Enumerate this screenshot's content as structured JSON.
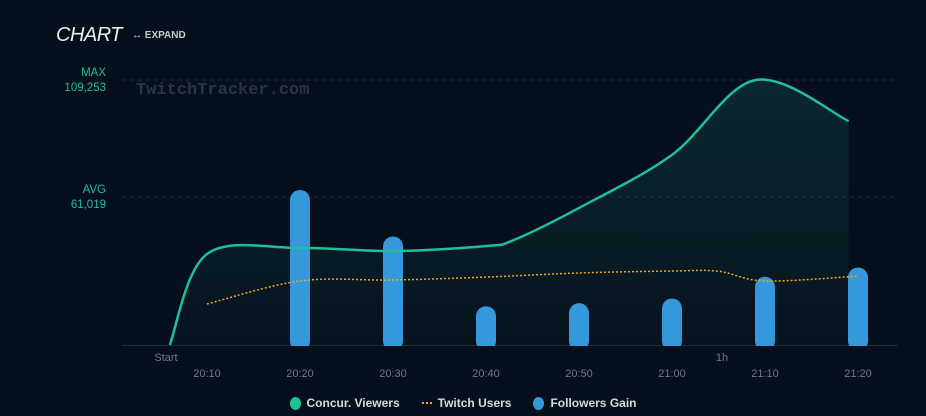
{
  "header": {
    "title": "CHART",
    "expand_label": "EXPAND",
    "expand_icon": "arrows-horizontal-icon"
  },
  "watermark": "TwitchTracker.com",
  "markers": {
    "max_label": "MAX",
    "max_value": "109,253",
    "avg_label": "AVG",
    "avg_value": "61,019"
  },
  "chart_data": {
    "type": "line+bar",
    "x_ticks": [
      "20:10",
      "20:20",
      "20:30",
      "20:40",
      "20:50",
      "21:00",
      "21:10",
      "21:20"
    ],
    "x_extra_labels": [
      "Start",
      "1h"
    ],
    "ylim": [
      0,
      109253
    ],
    "reference_lines": [
      {
        "label": "MAX",
        "value": 109253
      },
      {
        "label": "AVG",
        "value": 61019
      }
    ],
    "grid": false,
    "legend_placement": "bottom",
    "series": [
      {
        "name": "Concur. Viewers",
        "type": "area",
        "color": "#1fbf98",
        "x": [
          "20:06",
          "20:10",
          "20:20",
          "20:30",
          "20:40",
          "20:43",
          "20:50",
          "21:00",
          "21:09",
          "21:19"
        ],
        "values": [
          0,
          37500,
          40000,
          38700,
          40800,
          43300,
          56500,
          78400,
          109253,
          92300
        ]
      },
      {
        "name": "Twitch Users",
        "type": "line-dotted",
        "color": "#f5a623",
        "x": [
          "20:10",
          "20:20",
          "20:30",
          "20:40",
          "20:50",
          "21:00",
          "21:05",
          "21:10",
          "21:20"
        ],
        "values": [
          16900,
          26400,
          26800,
          28000,
          29700,
          30500,
          30400,
          26400,
          28400
        ]
      },
      {
        "name": "Followers Gain",
        "type": "bar",
        "color": "#3598db",
        "x": [
          "20:20",
          "20:30",
          "20:40",
          "20:50",
          "21:00",
          "21:10",
          "21:20"
        ],
        "relative_values": [
          100,
          70,
          25,
          27,
          30,
          44,
          50
        ]
      }
    ]
  },
  "legend": [
    {
      "label": "Concur. Viewers",
      "color": "#1fbf98"
    },
    {
      "label": "Twitch Users",
      "color": "#f5a623"
    },
    {
      "label": "Followers Gain",
      "color": "#3598db"
    }
  ]
}
